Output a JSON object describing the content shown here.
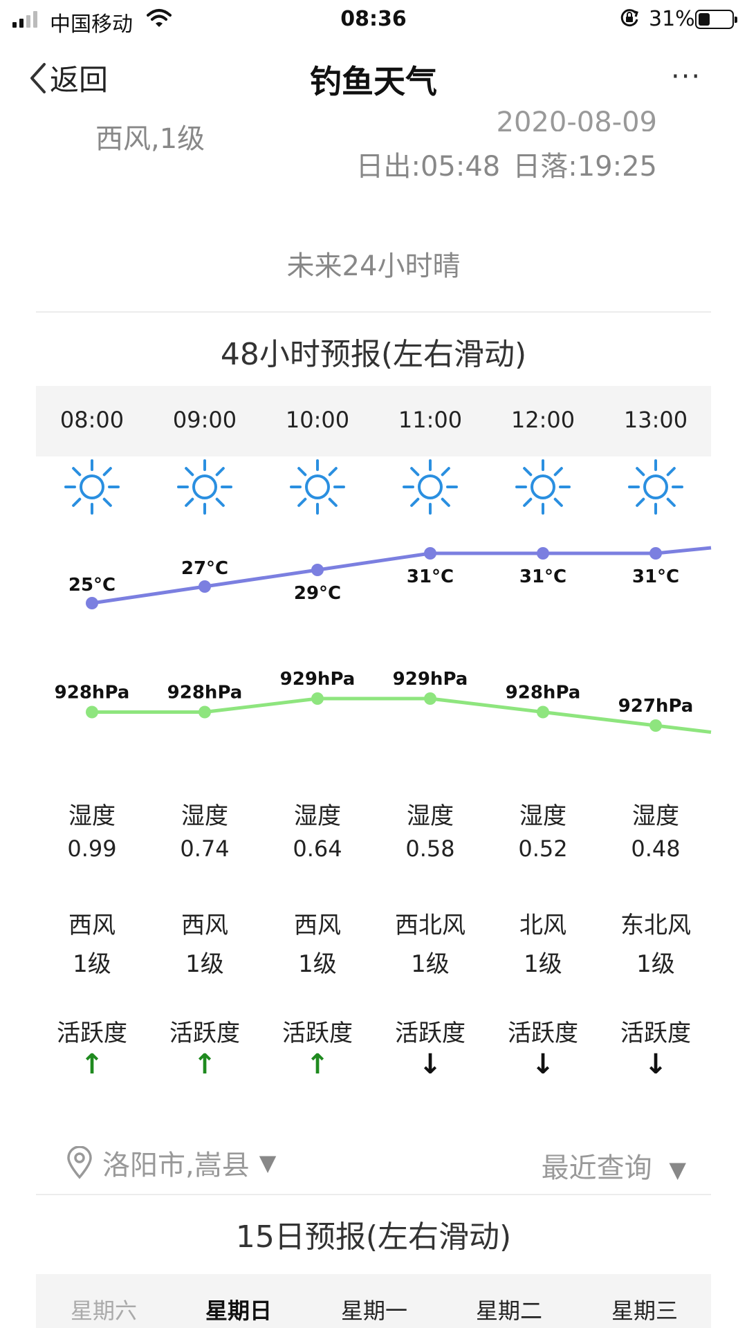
{
  "status_bar": {
    "carrier": "中国移动",
    "time": "08:36",
    "battery_percent": "31%",
    "battery_level": 0.31
  },
  "nav": {
    "back_label": "返回",
    "title": "钓鱼天气",
    "more_label": "···"
  },
  "summary": {
    "wind": "西风,1级",
    "date": "2020-08-09",
    "sunrise": "日出:05:48",
    "sunset": "日落:19:25",
    "forecast_24h": "未来24小时晴"
  },
  "hourly": {
    "title": "48小时预报(左右滑动)",
    "hours": [
      "08:00",
      "09:00",
      "10:00",
      "11:00",
      "12:00",
      "13:00"
    ],
    "weather_icon": "sun-icon",
    "temperatures": [
      25,
      27,
      29,
      31,
      31,
      31
    ],
    "temperature_labels": [
      "25°C",
      "27°C",
      "29°C",
      "31°C",
      "31°C",
      "31°C"
    ],
    "pressures": [
      928,
      928,
      929,
      929,
      928,
      927
    ],
    "pressure_labels": [
      "928hPa",
      "928hPa",
      "929hPa",
      "929hPa",
      "928hPa",
      "927hPa"
    ],
    "humidity_label": "湿度",
    "humidity": [
      "0.99",
      "0.74",
      "0.64",
      "0.58",
      "0.52",
      "0.48"
    ],
    "wind_dir": [
      "西风",
      "西风",
      "西风",
      "西北风",
      "北风",
      "东北风"
    ],
    "wind_level": [
      "1级",
      "1级",
      "1级",
      "1级",
      "1级",
      "1级"
    ],
    "activity_label": "活跃度",
    "activity": [
      "↑",
      "↑",
      "↑",
      "↓",
      "↓",
      "↓"
    ],
    "temp_line_color": "#7b7fe0",
    "pressure_line_color": "#8ee57e",
    "sun_color": "#2a8fe0",
    "up_color": "#1f8a1f",
    "down_color": "#111111"
  },
  "location": {
    "place": "洛阳市,嵩县",
    "caret": "▼",
    "recent_label": "最近查询"
  },
  "daily": {
    "title": "15日预报(左右滑动)",
    "days": [
      "星期六",
      "星期日",
      "星期一",
      "星期二",
      "星期三"
    ]
  }
}
